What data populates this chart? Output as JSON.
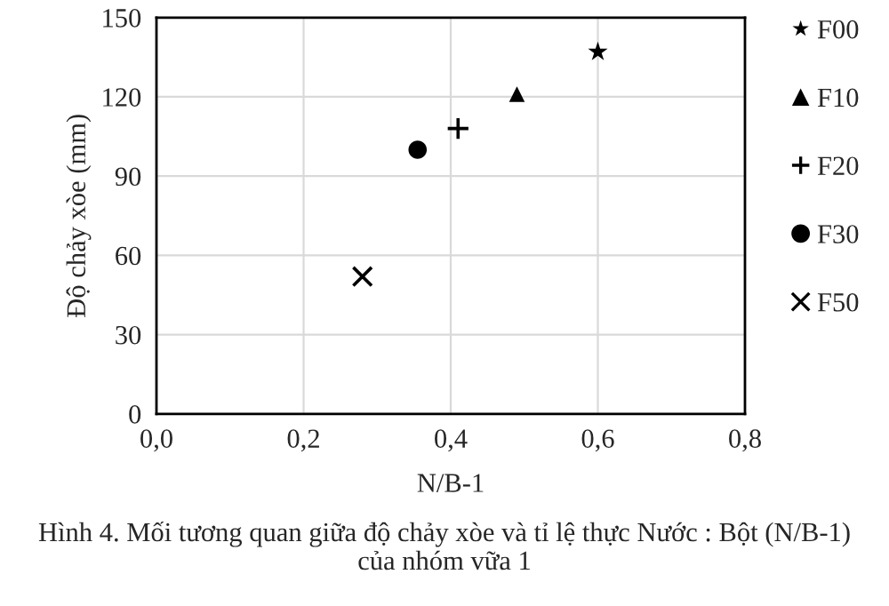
{
  "chart_data": {
    "type": "scatter",
    "xlabel": "N/B-1",
    "ylabel": "Độ chảy xòe (mm)",
    "annotations": [
      "Hình 4. Mối tương quan giữa độ chảy xòe và tỉ lệ thực Nước : Bột (N/B-1)\ncủa nhóm vữa 1"
    ],
    "series": [
      {
        "name": "F00",
        "color": "#000000",
        "marker": "star",
        "x": [
          0.6
        ],
        "values": [
          137
        ]
      },
      {
        "name": "F10",
        "color": "#000000",
        "marker": "triangle",
        "x": [
          0.49
        ],
        "values": [
          121
        ]
      },
      {
        "name": "F20",
        "color": "#000000",
        "marker": "plus",
        "x": [
          0.41
        ],
        "values": [
          108
        ]
      },
      {
        "name": "F30",
        "color": "#000000",
        "marker": "circle",
        "x": [
          0.355
        ],
        "values": [
          100
        ]
      },
      {
        "name": "F50",
        "color": "#000000",
        "marker": "cross",
        "x": [
          0.28
        ],
        "values": [
          52
        ]
      }
    ],
    "xlim": [
      0,
      0.8
    ],
    "xticks": [
      {
        "value": 0,
        "label": "0,0"
      },
      {
        "value": 0.2,
        "label": "0,2"
      },
      {
        "value": 0.4,
        "label": "0,4"
      },
      {
        "value": 0.6,
        "label": "0,6"
      },
      {
        "value": 0.8,
        "label": "0,8"
      }
    ],
    "ylim": [
      0,
      150
    ],
    "yticks": [
      0,
      30,
      60,
      90,
      120,
      150
    ],
    "grid": true,
    "legend": "right"
  }
}
